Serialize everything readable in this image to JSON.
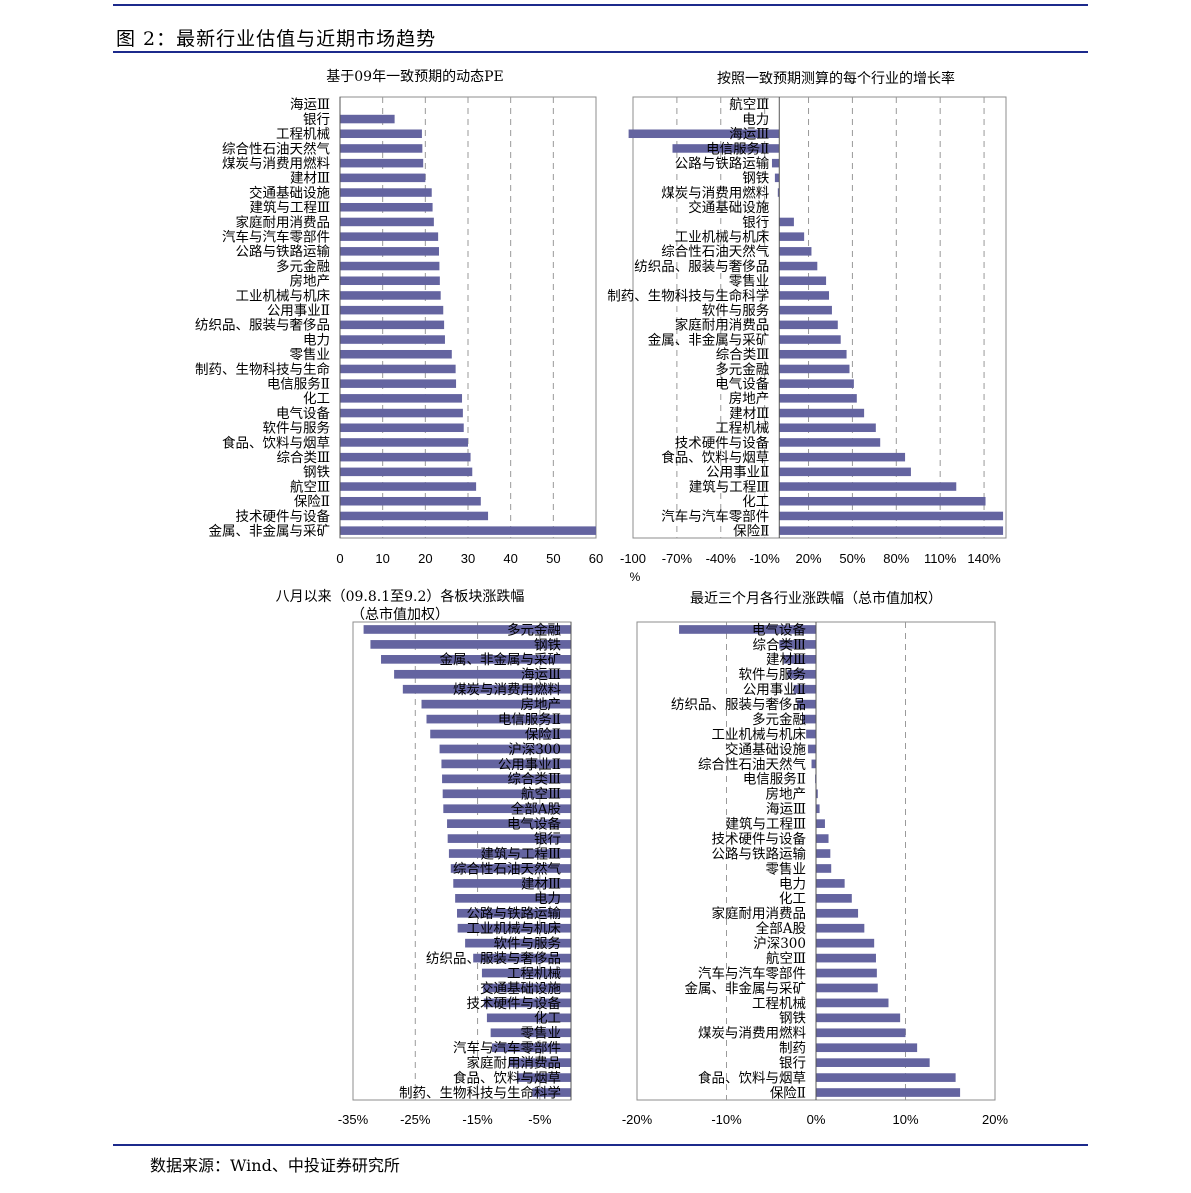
{
  "figure": {
    "title": "图 2：最新行业估值与近期市场趋势",
    "source": "数据来源：Wind、中投证券研究所"
  },
  "colors": {
    "bar": "#6464a0",
    "rule": "#1c2a8c",
    "grid": "#9a9a9a"
  },
  "chart_data": [
    {
      "type": "bar",
      "orientation": "horizontal",
      "title": "基于09年一致预期的动态PE",
      "title_lines": [
        "基于09年一致预期的动态PE"
      ],
      "xlim": [
        0,
        60
      ],
      "xticks": [
        0,
        10,
        20,
        30,
        40,
        50,
        60
      ],
      "tick_labels": [
        "0",
        "10",
        "20",
        "30",
        "40",
        "50",
        "60"
      ],
      "grid": "vertical dashed",
      "categories": [
        "海运Ⅲ",
        "银行",
        "工程机械",
        "综合性石油天然气",
        "煤炭与消费用燃料",
        "建材Ⅲ",
        "交通基础设施",
        "建筑与工程Ⅲ",
        "家庭耐用消费品",
        "汽车与汽车零部件",
        "公路与铁路运输",
        "多元金融",
        "房地产",
        "工业机械与机床",
        "公用事业Ⅱ",
        "纺织品、服装与奢侈品",
        "电力",
        "零售业",
        "制药、生物科技与生命",
        "电信服务Ⅱ",
        "化工",
        "电气设备",
        "软件与服务",
        "食品、饮料与烟草",
        "综合类Ⅲ",
        "钢铁",
        "航空Ⅲ",
        "保险Ⅱ",
        "技术硬件与设备",
        "金属、非金属与采矿"
      ],
      "values": [
        0,
        12.8,
        19.2,
        19.3,
        19.5,
        20.0,
        21.5,
        21.7,
        22.0,
        23.0,
        23.2,
        23.3,
        23.4,
        23.6,
        24.2,
        24.4,
        24.6,
        26.2,
        27.1,
        27.2,
        28.6,
        28.8,
        29.0,
        30.0,
        30.6,
        31.0,
        31.9,
        33.0,
        34.7,
        60.0
      ]
    },
    {
      "type": "bar",
      "orientation": "horizontal",
      "title": "按照一致预期测算的每个行业的增长率",
      "title_lines": [
        "按照一致预期测算的每个行业的增长率"
      ],
      "xlim": [
        -100,
        155
      ],
      "xticks": [
        -100,
        -70,
        -40,
        -10,
        20,
        50,
        80,
        110,
        140
      ],
      "tick_labels": [
        "-100",
        "-70%",
        "-40%",
        "-10%",
        "20%",
        "50%",
        "80%",
        "110%",
        "140%"
      ],
      "axis_extra_label": "%",
      "grid": "vertical dashed",
      "categories": [
        "航空Ⅲ",
        "电力",
        "海运Ⅲ",
        "电信服务Ⅱ",
        "公路与铁路运输",
        "钢铁",
        "煤炭与消费用燃料",
        "交通基础设施",
        "银行",
        "工业机械与机床",
        "综合性石油天然气",
        "纺织品、服装与奢侈品",
        "零售业",
        "制药、生物科技与生命科学",
        "软件与服务",
        "家庭耐用消费品",
        "金属、非金属与采矿",
        "综合类Ⅲ",
        "多元金融",
        "电气设备",
        "房地产",
        "建材Ⅲ",
        "工程机械",
        "技术硬件与设备",
        "食品、饮料与烟草",
        "公用事业Ⅱ",
        "建筑与工程Ⅲ",
        "化工",
        "汽车与汽车零部件",
        "保险Ⅱ"
      ],
      "values": [
        0,
        0,
        -103,
        -73,
        -5,
        -3,
        -1,
        0,
        10,
        17,
        22,
        26,
        32,
        34,
        36,
        40,
        42,
        46,
        48,
        51,
        53,
        58,
        66,
        69,
        86,
        90,
        121,
        141,
        153,
        153
      ]
    },
    {
      "type": "bar",
      "orientation": "horizontal",
      "title": "八月以来（09.8.1至9.2）各板块涨跌幅（总市值加权）",
      "title_lines": [
        "八月以来（09.8.1至9.2）各板块涨跌幅",
        "（总市值加权）"
      ],
      "xlim": [
        -35,
        0
      ],
      "xticks": [
        -35,
        -25,
        -15,
        -5
      ],
      "tick_labels": [
        "-35%",
        "-25%",
        "-15%",
        "-5%"
      ],
      "grid": "vertical dashed",
      "categories": [
        "多元金融",
        "钢铁",
        "金属、非金属与采矿",
        "海运Ⅲ",
        "煤炭与消费用燃料",
        "房地产",
        "电信服务Ⅱ",
        "保险Ⅱ",
        "沪深300",
        "公用事业Ⅱ",
        "综合类Ⅲ",
        "航空Ⅲ",
        "全部A股",
        "电气设备",
        "银行",
        "建筑与工程Ⅲ",
        "综合性石油天然气",
        "建材Ⅲ",
        "电力",
        "公路与铁路运输",
        "工业机械与机床",
        "软件与服务",
        "纺织品、服装与奢侈品",
        "工程机械",
        "交通基础设施",
        "技术硬件与设备",
        "化工",
        "零售业",
        "汽车与汽车零部件",
        "家庭耐用消费品",
        "食品、饮料与烟草",
        "制药、生物科技与生命科学"
      ],
      "values": [
        -33.3,
        -32.2,
        -30.5,
        -28.4,
        -27.0,
        -24.0,
        -23.2,
        -22.6,
        -21.1,
        -20.8,
        -20.7,
        -20.6,
        -20.5,
        -19.9,
        -19.8,
        -19.6,
        -19.3,
        -18.9,
        -18.6,
        -18.3,
        -18.2,
        -17.0,
        -15.7,
        -14.3,
        -14.1,
        -14.0,
        -13.5,
        -12.9,
        -12.7,
        -10.0,
        -8.7,
        -6.2
      ]
    },
    {
      "type": "bar",
      "orientation": "horizontal",
      "title": "最近三个月各行业涨跌幅（总市值加权）",
      "title_lines": [
        "最近三个月各行业涨跌幅（总市值加权）"
      ],
      "xlim": [
        -20,
        20
      ],
      "xticks": [
        -20,
        -10,
        0,
        10,
        20
      ],
      "tick_labels": [
        "-20%",
        "-10%",
        "0%",
        "10%",
        "20%"
      ],
      "grid": "vertical dashed",
      "categories": [
        "电气设备",
        "综合类Ⅲ",
        "建材Ⅲ",
        "软件与服务",
        "公用事业Ⅱ",
        "纺织品、服装与奢侈品",
        "多元金融",
        "工业机械与机床",
        "交通基础设施",
        "综合性石油天然气",
        "电信服务Ⅱ",
        "房地产",
        "海运Ⅲ",
        "建筑与工程Ⅲ",
        "技术硬件与设备",
        "公路与铁路运输",
        "零售业",
        "电力",
        "化工",
        "家庭耐用消费品",
        "全部A股",
        "沪深300",
        "航空Ⅲ",
        "汽车与汽车零部件",
        "金属、非金属与采矿",
        "工程机械",
        "钢铁",
        "煤炭与消费用燃料",
        "制药",
        "银行",
        "食品、饮料与烟草",
        "保险Ⅱ"
      ],
      "values": [
        -15.3,
        -4.1,
        -3.6,
        -3.2,
        -2.5,
        -2.1,
        -1.5,
        -1.1,
        -0.9,
        -0.5,
        -0.1,
        0.2,
        0.4,
        1.0,
        1.4,
        1.6,
        1.7,
        3.2,
        4.0,
        4.7,
        5.4,
        6.5,
        6.7,
        6.8,
        6.9,
        8.1,
        9.4,
        10.0,
        11.3,
        12.7,
        15.6,
        16.1
      ]
    }
  ]
}
